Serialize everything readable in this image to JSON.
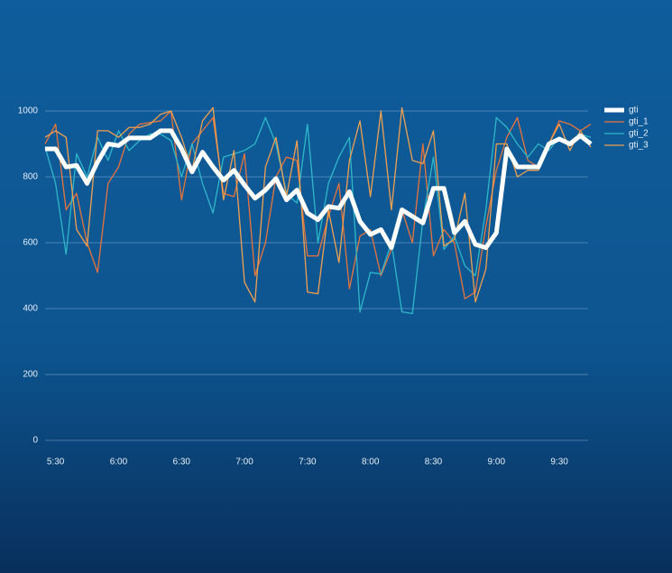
{
  "chart_data": {
    "type": "line",
    "x": [
      325,
      330,
      335,
      340,
      345,
      350,
      355,
      360,
      365,
      370,
      375,
      380,
      385,
      390,
      395,
      400,
      405,
      410,
      415,
      420,
      425,
      430,
      435,
      440,
      445,
      450,
      455,
      460,
      465,
      470,
      475,
      480,
      485,
      490,
      495,
      500,
      505,
      510,
      515,
      520,
      525,
      530,
      535,
      540,
      545,
      550,
      555,
      560,
      565,
      570,
      575,
      580,
      585
    ],
    "xlim": [
      325,
      585
    ],
    "xticks": [
      {
        "value": 330,
        "label": "5:30"
      },
      {
        "value": 360,
        "label": "6:00"
      },
      {
        "value": 390,
        "label": "6:30"
      },
      {
        "value": 420,
        "label": "7:00"
      },
      {
        "value": 450,
        "label": "7:30"
      },
      {
        "value": 480,
        "label": "8:00"
      },
      {
        "value": 510,
        "label": "8:30"
      },
      {
        "value": 540,
        "label": "9:00"
      },
      {
        "value": 570,
        "label": "9:30"
      }
    ],
    "ylim": [
      0,
      1000
    ],
    "yticks": [
      0,
      200,
      400,
      600,
      800,
      1000
    ],
    "grid": true,
    "legend": "right",
    "series": [
      {
        "name": "gti",
        "color": "#ffffff",
        "values": [
          885,
          885,
          830,
          835,
          780,
          845,
          900,
          895,
          918,
          918,
          918,
          940,
          940,
          885,
          815,
          875,
          830,
          790,
          820,
          775,
          735,
          760,
          795,
          730,
          760,
          690,
          670,
          710,
          705,
          755,
          665,
          625,
          640,
          585,
          700,
          680,
          660,
          765,
          765,
          630,
          665,
          595,
          585,
          630,
          885,
          830,
          830,
          830,
          900,
          915,
          900,
          925,
          900
        ]
      },
      {
        "name": "gti_1",
        "color": "#e8743b",
        "values": [
          900,
          960,
          700,
          750,
          600,
          510,
          780,
          830,
          930,
          960,
          965,
          970,
          1000,
          730,
          900,
          940,
          980,
          750,
          740,
          870,
          500,
          600,
          800,
          860,
          850,
          560,
          560,
          680,
          780,
          460,
          620,
          640,
          500,
          580,
          700,
          600,
          900,
          560,
          640,
          600,
          430,
          450,
          650,
          820,
          920,
          980,
          850,
          830,
          900,
          970,
          960,
          940,
          960
        ]
      },
      {
        "name": "gti_2",
        "color": "#2fb8c8",
        "values": [
          890,
          780,
          565,
          870,
          800,
          920,
          850,
          940,
          880,
          910,
          930,
          930,
          910,
          800,
          900,
          780,
          690,
          860,
          870,
          880,
          900,
          980,
          900,
          750,
          720,
          960,
          600,
          780,
          860,
          920,
          390,
          510,
          505,
          600,
          390,
          385,
          670,
          860,
          580,
          620,
          530,
          500,
          700,
          980,
          950,
          900,
          860,
          900,
          880,
          920,
          900,
          930,
          920
        ]
      },
      {
        "name": "gti_3",
        "color": "#f0a050",
        "values": [
          920,
          940,
          920,
          640,
          590,
          940,
          940,
          920,
          950,
          950,
          960,
          990,
          1000,
          920,
          820,
          970,
          1010,
          730,
          880,
          480,
          420,
          830,
          920,
          740,
          910,
          450,
          445,
          700,
          540,
          850,
          970,
          740,
          1000,
          700,
          1010,
          850,
          840,
          940,
          590,
          610,
          750,
          420,
          520,
          900,
          900,
          800,
          820,
          820,
          900,
          960,
          880,
          940,
          890
        ]
      }
    ]
  }
}
